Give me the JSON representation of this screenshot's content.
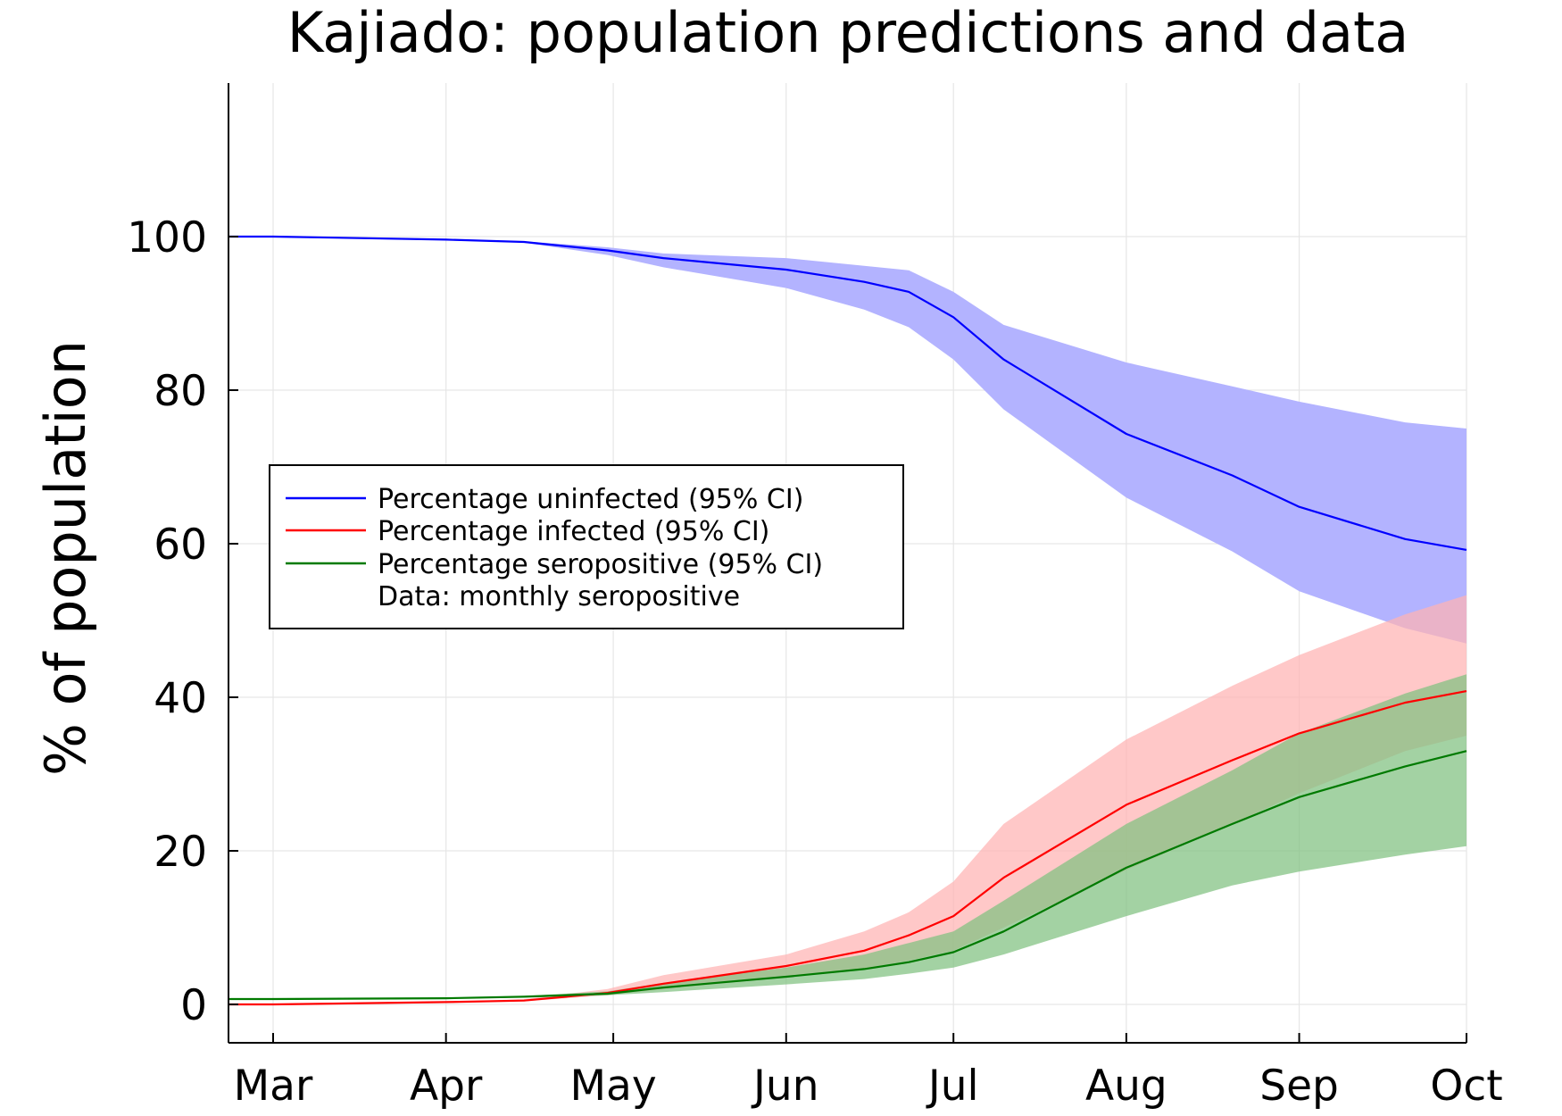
{
  "chart_data": {
    "type": "line",
    "title": "Kajiado: population predictions and data",
    "xlabel": "",
    "ylabel": "% of population",
    "x_ticks": [
      "Mar",
      "Apr",
      "May",
      "Jun",
      "Jul",
      "Aug",
      "Sep",
      "Oct"
    ],
    "y_ticks": [
      "0",
      "20",
      "40",
      "60",
      "80",
      "100"
    ],
    "ylim": [
      -5,
      120
    ],
    "grid": true,
    "legend_position": "left",
    "legend": [
      "Percentage uninfected (95% CI)",
      "Percentage infected (95% CI)",
      "Percentage seropositive (95% CI)",
      "Data: monthly seropositive"
    ],
    "x": [
      "2020-02-22",
      "2020-03-01",
      "2020-04-01",
      "2020-04-15",
      "2020-04-30",
      "2020-05-10",
      "2020-06-01",
      "2020-06-15",
      "2020-06-23",
      "2020-07-01",
      "2020-07-10",
      "2020-08-01",
      "2020-08-20",
      "2020-09-01",
      "2020-09-20",
      "2020-10-01"
    ],
    "series": [
      {
        "name": "Percentage uninfected (95% CI)",
        "color": "#0000ff",
        "band_color": "#b3b3ff",
        "values": [
          100,
          100,
          99.6,
          99.3,
          98.2,
          97.2,
          95.7,
          94.1,
          92.8,
          89.5,
          84,
          74.3,
          68.9,
          64.8,
          60.6,
          59.2
        ],
        "lower": [
          100,
          100,
          99.6,
          99.2,
          97.6,
          96,
          93.3,
          90.5,
          88.2,
          84,
          77.5,
          66,
          59,
          53.8,
          49,
          47
        ],
        "upper": [
          100,
          100,
          99.6,
          99.4,
          98.6,
          97.8,
          97.2,
          96.2,
          95.6,
          92.8,
          88.5,
          83.6,
          80.5,
          78.5,
          75.8,
          75
        ]
      },
      {
        "name": "Percentage infected (95% CI)",
        "color": "#ff0000",
        "band_color": "#ffb3b3",
        "values": [
          0,
          0,
          0.3,
          0.5,
          1.5,
          2.7,
          5,
          7,
          9,
          11.5,
          16.5,
          26,
          31.8,
          35.3,
          39.3,
          40.8
        ],
        "lower": [
          0,
          0,
          0.3,
          0.4,
          1.2,
          2,
          3.5,
          4.7,
          5.7,
          7,
          10,
          17.5,
          23.5,
          27.5,
          33,
          35
        ],
        "upper": [
          0,
          0,
          0.3,
          0.7,
          2,
          3.8,
          6.5,
          9.5,
          12,
          16,
          23.5,
          34.5,
          41.5,
          45.5,
          50.8,
          53.3
        ]
      },
      {
        "name": "Percentage seropositive (95% CI)",
        "color": "#007a00",
        "band_color": "#80c080",
        "values": [
          0.7,
          0.7,
          0.8,
          1,
          1.4,
          2.2,
          3.6,
          4.6,
          5.5,
          6.8,
          9.5,
          17.8,
          23.5,
          27,
          31,
          33
        ],
        "lower": [
          0.7,
          0.7,
          0.8,
          0.9,
          1.2,
          1.6,
          2.6,
          3.3,
          4,
          4.8,
          6.5,
          11.5,
          15.5,
          17.3,
          19.5,
          20.6
        ],
        "upper": [
          0.7,
          0.7,
          0.8,
          1.1,
          1.7,
          2.8,
          4.8,
          6.5,
          8,
          9.5,
          13.5,
          23.5,
          30.5,
          35.3,
          40.5,
          43
        ]
      }
    ],
    "data_points": []
  }
}
